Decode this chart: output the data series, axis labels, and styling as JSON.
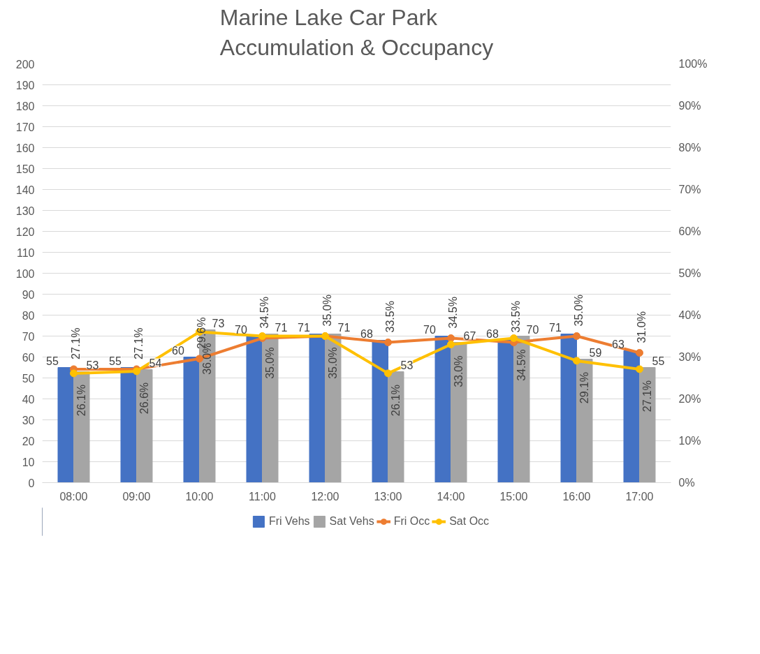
{
  "chart_data": {
    "type": "bar",
    "title": "Marine Lake Car Park\nAccumulation & Occupancy",
    "categories": [
      "08:00",
      "09:00",
      "10:00",
      "11:00",
      "12:00",
      "13:00",
      "14:00",
      "15:00",
      "16:00",
      "17:00"
    ],
    "series": [
      {
        "name": "Fri Vehs",
        "color": "#4472c4",
        "values": [
          55,
          55,
          60,
          70,
          71,
          68,
          70,
          68,
          71,
          63
        ],
        "value_labels": [
          "55",
          "55",
          "60",
          "70",
          "71",
          "68",
          "70",
          "68",
          "71",
          "63"
        ]
      },
      {
        "name": "Sat Vehs",
        "color": "#a5a5a5",
        "values": [
          53,
          54,
          73,
          71,
          71,
          53,
          67,
          70,
          59,
          55
        ],
        "value_labels": [
          "53",
          "54",
          "73",
          "71",
          "71",
          "53",
          "67",
          "70",
          "59",
          "55"
        ]
      },
      {
        "name": "Fri Occ",
        "type": "line",
        "axis": "y2",
        "color": "#ed7d31",
        "values": [
          27.1,
          27.1,
          29.6,
          34.5,
          35.0,
          33.5,
          34.5,
          33.5,
          35.0,
          31.0
        ],
        "value_labels": [
          "27.1%",
          "27.1%",
          "29.6%",
          "34.5%",
          "35.0%",
          "33.5%",
          "34.5%",
          "33.5%",
          "35.0%",
          "31.0%"
        ]
      },
      {
        "name": "Sat Occ",
        "type": "line",
        "axis": "y2",
        "color": "#ffc000",
        "values": [
          26.1,
          26.6,
          36.0,
          35.0,
          35.0,
          26.1,
          33.0,
          34.5,
          29.1,
          27.1
        ],
        "value_labels": [
          "26.1%",
          "26.6%",
          "36.0%",
          "35.0%",
          "35.0%",
          "26.1%",
          "33.0%",
          "34.5%",
          "29.1%",
          "27.1%"
        ]
      }
    ],
    "ylim": [
      0,
      200
    ],
    "yticks": [
      0,
      10,
      20,
      30,
      40,
      50,
      60,
      70,
      80,
      90,
      100,
      110,
      120,
      130,
      140,
      150,
      160,
      170,
      180,
      190,
      200
    ],
    "y2lim": [
      0,
      100
    ],
    "y2ticks": [
      {
        "value": 0,
        "label": "0%"
      },
      {
        "value": 10,
        "label": "10%"
      },
      {
        "value": 20,
        "label": "20%"
      },
      {
        "value": 30,
        "label": "30%"
      },
      {
        "value": 40,
        "label": "40%"
      },
      {
        "value": 50,
        "label": "50%"
      },
      {
        "value": 60,
        "label": "60%"
      },
      {
        "value": 70,
        "label": "70%"
      },
      {
        "value": 80,
        "label": "80%"
      },
      {
        "value": 90,
        "label": "90%"
      },
      {
        "value": 100,
        "label": "100%"
      }
    ],
    "grid": "y",
    "legend": "bottom",
    "marker": "circle"
  }
}
